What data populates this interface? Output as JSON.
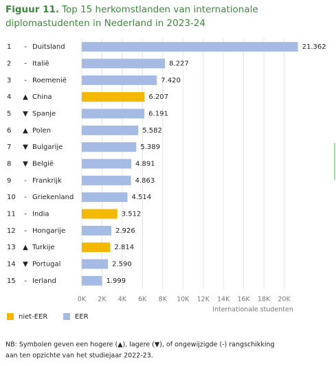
{
  "chart_data": {
    "type": "bar",
    "orientation": "horizontal",
    "title_label": "Figuur 11.",
    "title": "Top 15 herkomstlanden van internationale diplomastudenten in Nederland in 2023-24",
    "ranks": [
      "1",
      "2",
      "3",
      "4",
      "5",
      "6",
      "7",
      "8",
      "9",
      "10",
      "11",
      "12",
      "13",
      "14",
      "15"
    ],
    "trends": [
      "-",
      "-",
      "-",
      "▲",
      "▼",
      "▲",
      "▼",
      "▼",
      "-",
      "-",
      "-",
      "-",
      "▲",
      "▼",
      "-"
    ],
    "categories": [
      "Duitsland",
      "Italië",
      "Roemenië",
      "China",
      "Spanje",
      "Polen",
      "Bulgarije",
      "België",
      "Frankrijk",
      "Griekenland",
      "India",
      "Hongarije",
      "Turkije",
      "Portugal",
      "Ierland"
    ],
    "series": [
      {
        "name": "niet-EER",
        "color": "#f5b800",
        "values": [
          null,
          null,
          null,
          6207,
          null,
          null,
          null,
          null,
          null,
          null,
          3512,
          null,
          2814,
          null,
          null
        ],
        "value_labels": [
          null,
          null,
          null,
          "6.207",
          null,
          null,
          null,
          null,
          null,
          null,
          "3.512",
          null,
          "2.814",
          null,
          null
        ]
      },
      {
        "name": "EER",
        "color": "#a6bbe4",
        "values": [
          21362,
          8227,
          7420,
          null,
          6191,
          5582,
          5389,
          4891,
          4863,
          4514,
          null,
          2926,
          null,
          2590,
          1999
        ],
        "value_labels": [
          "21.362",
          "8.227",
          "7.420",
          null,
          "6.191",
          "5.582",
          "5.389",
          "4.891",
          "4.863",
          "4.514",
          null,
          "2.926",
          null,
          "2.590",
          "1.999"
        ]
      }
    ],
    "xlim": [
      0,
      22000
    ],
    "xticks": [
      {
        "value": 0,
        "label": "0K"
      },
      {
        "value": 2000,
        "label": "2K"
      },
      {
        "value": 4000,
        "label": "4K"
      },
      {
        "value": 6000,
        "label": "6K"
      },
      {
        "value": 8000,
        "label": "8K"
      },
      {
        "value": 10000,
        "label": "10K"
      },
      {
        "value": 12000,
        "label": "12K"
      },
      {
        "value": 14000,
        "label": "14K"
      },
      {
        "value": 16000,
        "label": "16K"
      },
      {
        "value": 18000,
        "label": "18K"
      },
      {
        "value": 20000,
        "label": "20K"
      }
    ],
    "xlabel": "Internationale studenten",
    "grid": true,
    "legend": "bottom-left",
    "note_lines": [
      "NB: Symbolen geven een hogere (▲), lagere (▼), of ongewijzigde (-) rangschikking",
      "aan ten opzichte van het studiejaar 2022-23."
    ]
  }
}
